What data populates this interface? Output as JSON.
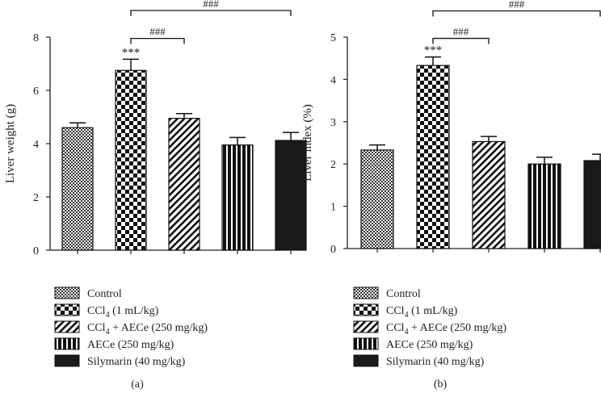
{
  "legend_labels": [
    {
      "main": "Control",
      "sub": "",
      "rest": ""
    },
    {
      "main": "CCl",
      "sub": "4",
      "rest": " (1 mL/kg)"
    },
    {
      "main": "CCl",
      "sub": "4",
      "rest": " + AECe (250 mg/kg)"
    },
    {
      "main": "AECe (250 mg/kg)",
      "sub": "",
      "rest": ""
    },
    {
      "main": "Silymarin (40 mg/kg)",
      "sub": "",
      "rest": ""
    }
  ],
  "chart_data": [
    {
      "type": "bar",
      "panel_label": "(a)",
      "ylabel": "Liver weight (g)",
      "ylim": [
        0,
        8
      ],
      "yticks": [
        "0",
        "2",
        "4",
        "6",
        "8"
      ],
      "categories": [
        "Control",
        "CCl4 (1 mL/kg)",
        "CCl4 + AECe (250 mg/kg)",
        "AECe (250 mg/kg)",
        "Silymarin (40 mg/kg)"
      ],
      "values": [
        4.6,
        6.75,
        4.95,
        3.95,
        4.12
      ],
      "errors": [
        0.18,
        0.42,
        0.18,
        0.28,
        0.3
      ],
      "annotations": [
        {
          "category_index": 1,
          "text": "***"
        }
      ],
      "brackets": [
        {
          "from": 1,
          "to": 2,
          "text": "###",
          "y": 7.95
        },
        {
          "from": 1,
          "to": 4,
          "text": "###",
          "y": 9.0
        }
      ]
    },
    {
      "type": "bar",
      "panel_label": "(b)",
      "ylabel": "Liver index (%)",
      "ylim": [
        0,
        5
      ],
      "yticks": [
        "0",
        "1",
        "2",
        "3",
        "4",
        "5"
      ],
      "categories": [
        "Control",
        "CCl4 (1 mL/kg)",
        "CCl4 + AECe (250 mg/kg)",
        "AECe (250 mg/kg)",
        "Silymarin (40 mg/kg)"
      ],
      "values": [
        2.33,
        4.33,
        2.53,
        2.0,
        2.08
      ],
      "errors": [
        0.12,
        0.2,
        0.12,
        0.16,
        0.15
      ],
      "annotations": [
        {
          "category_index": 1,
          "text": "***"
        }
      ],
      "brackets": [
        {
          "from": 1,
          "to": 2,
          "text": "###",
          "y": 4.97
        },
        {
          "from": 1,
          "to": 4,
          "text": "###",
          "y": 5.62
        }
      ]
    }
  ]
}
